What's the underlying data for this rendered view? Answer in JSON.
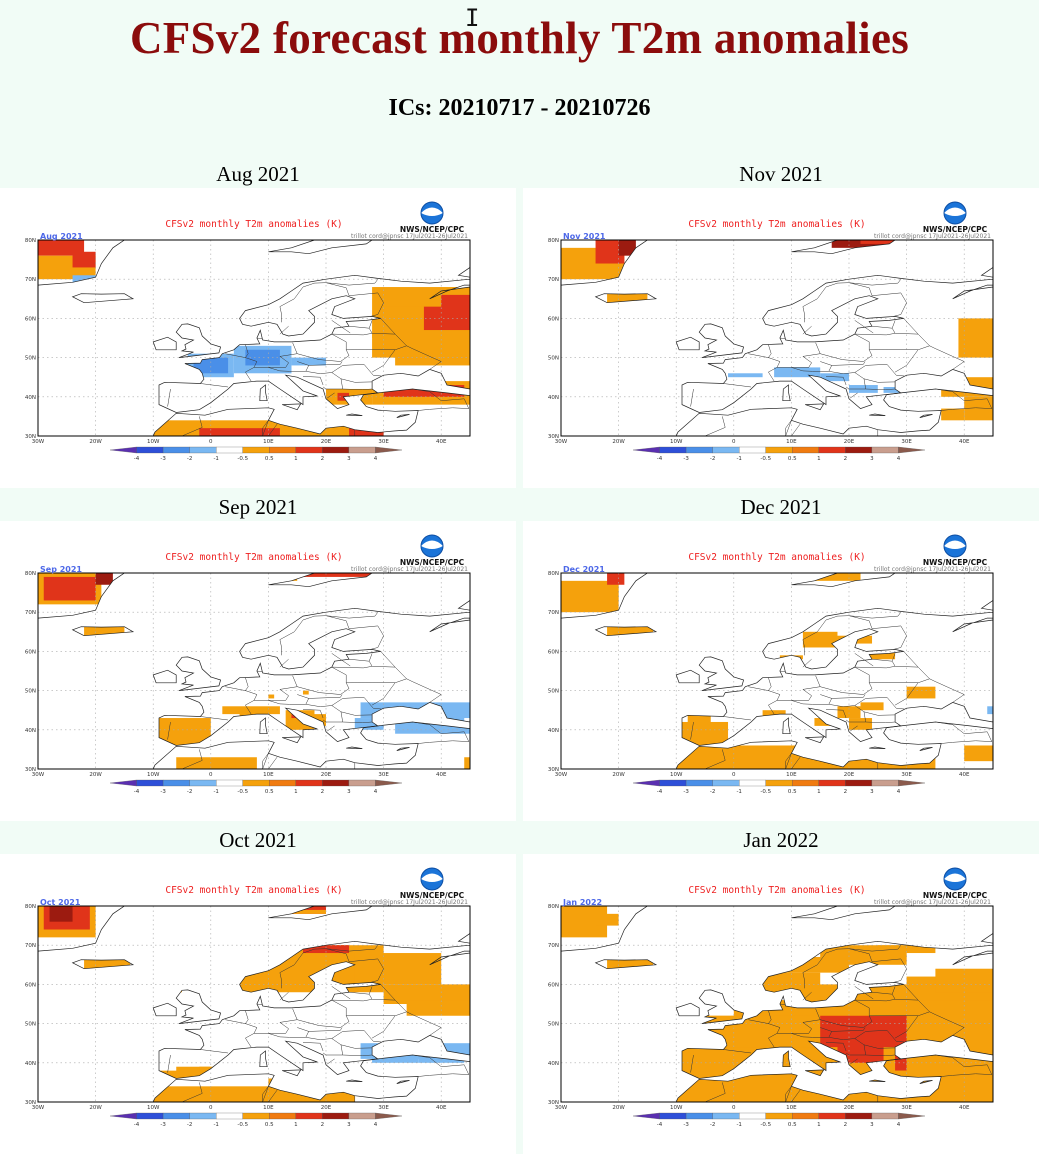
{
  "page": {
    "title": "CFSv2 forecast monthly T2m anomalies",
    "subtitle": "ICs: 20210717 - 20210726"
  },
  "map_common": {
    "title": "CFSv2 monthly T2m anomalies (K)",
    "agency": "NWS/NCEP/CPC",
    "credits": "trillot cord@jpnsc 17Jul2021-26Jul2021",
    "lat_labels": [
      "80N",
      "70N",
      "60N",
      "50N",
      "40N",
      "30N"
    ],
    "lon_labels": [
      "30W",
      "20W",
      "10W",
      "0",
      "10E",
      "20E",
      "30E",
      "40E"
    ],
    "colorbar_labels": [
      "-4",
      "-3",
      "-2",
      "-1",
      "-0.5",
      "0.5",
      "1",
      "2",
      "3",
      "4"
    ],
    "colorbar_colors": [
      "#5a2fb0",
      "#2e4fd8",
      "#4a8fe8",
      "#7ab8f2",
      "#ffffff",
      "#f5a10c",
      "#f07b10",
      "#e0341a",
      "#9c1b10",
      "#c99e8e",
      "#8b5a4c"
    ]
  },
  "panels": [
    {
      "month": "Aug 2021",
      "map_label": "Aug 2021"
    },
    {
      "month": "Nov 2021",
      "map_label": "Nov 2021"
    },
    {
      "month": "Sep 2021",
      "map_label": "Sep 2021"
    },
    {
      "month": "Dec 2021",
      "map_label": "Dec 2021"
    },
    {
      "month": "Oct 2021",
      "map_label": "Oct 2021"
    },
    {
      "month": "Jan 2022",
      "map_label": "Jan 2022"
    }
  ]
}
